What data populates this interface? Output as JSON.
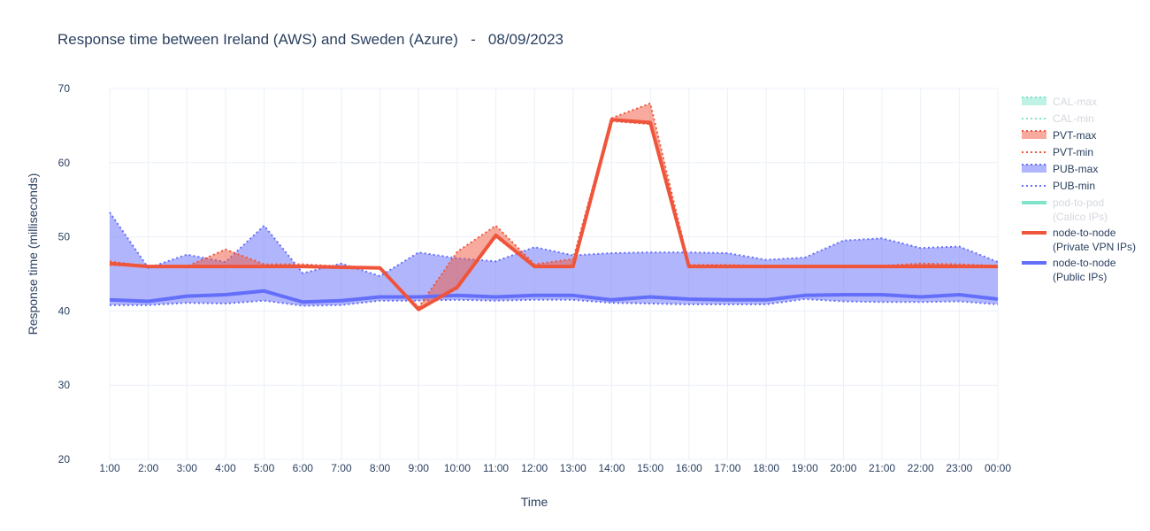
{
  "chart_data": {
    "type": "line",
    "title": "Response time between Ireland (AWS) and Sweden (Azure)   -   08/09/2023",
    "xlabel": "Time",
    "ylabel": "Response time (milliseconds)",
    "ylim": [
      20,
      70
    ],
    "yticks": [
      20,
      30,
      40,
      50,
      60,
      70
    ],
    "grid": true,
    "legend_position": "right",
    "categories": [
      "1:00",
      "2:00",
      "3:00",
      "4:00",
      "5:00",
      "6:00",
      "7:00",
      "8:00",
      "9:00",
      "10:00",
      "11:00",
      "12:00",
      "13:00",
      "14:00",
      "15:00",
      "16:00",
      "17:00",
      "18:00",
      "19:00",
      "20:00",
      "21:00",
      "22:00",
      "23:00",
      "00:00"
    ],
    "series": [
      {
        "name": "PUB-max",
        "role": "band-max",
        "color": "#636efa",
        "values": [
          53.3,
          45.8,
          47.6,
          46.6,
          51.5,
          45.1,
          46.4,
          44.7,
          47.9,
          47.1,
          46.7,
          48.6,
          47.5,
          47.8,
          47.9,
          47.9,
          47.8,
          46.9,
          47.2,
          49.5,
          49.8,
          48.5,
          48.7,
          46.6
        ]
      },
      {
        "name": "PUB-min",
        "role": "band-min",
        "color": "#636efa",
        "values": [
          40.8,
          40.8,
          41.1,
          41.0,
          41.4,
          40.7,
          40.8,
          41.4,
          41.4,
          41.5,
          41.4,
          41.5,
          41.5,
          41.1,
          41.0,
          40.9,
          40.9,
          40.9,
          41.6,
          41.3,
          41.2,
          41.2,
          41.3,
          40.9
        ]
      },
      {
        "name": "PVT-max",
        "role": "band-max",
        "color": "#ef553b",
        "values": [
          46.7,
          46.0,
          46.0,
          48.3,
          46.3,
          46.3,
          46.0,
          45.8,
          40.5,
          48.0,
          51.5,
          46.3,
          47.0,
          66.0,
          68.0,
          46.2,
          46.2,
          46.1,
          46.1,
          46.1,
          46.1,
          46.4,
          46.3,
          46.1
        ]
      },
      {
        "name": "PVT-min",
        "role": "band-min",
        "color": "#ef553b",
        "values": [
          46.2,
          46.0,
          45.9,
          45.9,
          45.9,
          45.9,
          45.8,
          45.7,
          40.4,
          43.0,
          50.0,
          45.9,
          45.9,
          65.6,
          65.2,
          45.9,
          45.9,
          45.9,
          45.9,
          45.9,
          45.9,
          45.9,
          45.9,
          45.9
        ]
      },
      {
        "name": "node-to-node\n(Private VPN IPs)",
        "role": "main",
        "color": "#ef553b",
        "values": [
          46.4,
          46.0,
          46.0,
          46.0,
          46.0,
          46.0,
          45.9,
          45.8,
          40.2,
          43.2,
          50.2,
          46.0,
          46.0,
          65.8,
          65.4,
          46.0,
          46.0,
          46.0,
          46.0,
          46.0,
          46.0,
          46.0,
          46.0,
          46.0
        ]
      },
      {
        "name": "node-to-node\n(Public IPs)",
        "role": "main",
        "color": "#636efa",
        "values": [
          41.5,
          41.3,
          42.0,
          42.2,
          42.7,
          41.2,
          41.4,
          41.9,
          41.9,
          42.1,
          41.9,
          42.1,
          42.1,
          41.5,
          41.9,
          41.6,
          41.5,
          41.5,
          42.1,
          42.2,
          42.2,
          41.9,
          42.2,
          41.6
        ]
      }
    ],
    "legend": [
      {
        "label": "CAL-max",
        "kind": "fill",
        "color": "#00cc96",
        "visible": false
      },
      {
        "label": "CAL-min",
        "kind": "dot",
        "color": "#00cc96",
        "visible": false
      },
      {
        "label": "PVT-max",
        "kind": "fill",
        "color": "#ef553b",
        "visible": true
      },
      {
        "label": "PVT-min",
        "kind": "dot",
        "color": "#ef553b",
        "visible": true
      },
      {
        "label": "PUB-max",
        "kind": "fill",
        "color": "#636efa",
        "visible": true
      },
      {
        "label": "PUB-min",
        "kind": "dot",
        "color": "#636efa",
        "visible": true
      },
      {
        "label": "pod-to-pod",
        "label2": "(Calico IPs)",
        "kind": "line",
        "color": "#00cc96",
        "visible": false
      },
      {
        "label": "node-to-node",
        "label2": "(Private VPN IPs)",
        "kind": "line",
        "color": "#ef553b",
        "visible": true
      },
      {
        "label": "node-to-node",
        "label2": "(Public IPs)",
        "kind": "line",
        "color": "#636efa",
        "visible": true
      }
    ]
  }
}
